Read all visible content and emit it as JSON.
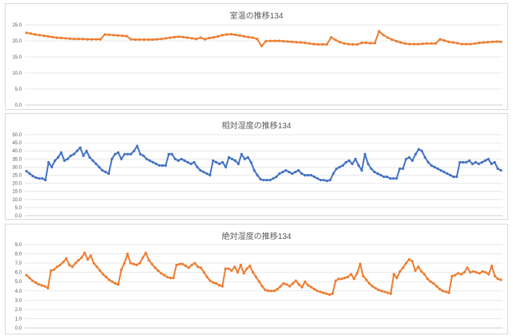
{
  "chart_data": [
    {
      "type": "line",
      "title": "室温の推移134",
      "xlabel": "",
      "ylabel": "",
      "ylim": [
        0,
        25
      ],
      "yticks": [
        "0.0",
        "5.0",
        "10.0",
        "15.0",
        "20.0",
        "25.0"
      ],
      "grid": true,
      "color": "#ED7D31",
      "marker": "circle",
      "series": [
        {
          "name": "",
          "values": [
            22.5,
            22.3,
            22.0,
            21.8,
            21.6,
            21.4,
            21.2,
            21.0,
            20.9,
            20.8,
            20.7,
            20.6,
            20.6,
            20.6,
            20.5,
            20.5,
            20.5,
            20.5,
            22.0,
            21.9,
            21.8,
            21.7,
            21.6,
            21.5,
            20.5,
            20.4,
            20.4,
            20.4,
            20.4,
            20.4,
            20.5,
            20.6,
            20.8,
            21.0,
            21.2,
            21.3,
            21.2,
            21.0,
            20.8,
            20.6,
            21.0,
            20.5,
            20.9,
            21.1,
            21.4,
            21.8,
            22.0,
            22.1,
            21.9,
            21.7,
            21.4,
            21.2,
            21.0,
            20.6,
            18.4,
            19.9,
            20.0,
            20.0,
            20.0,
            19.9,
            19.8,
            19.7,
            19.6,
            19.5,
            19.4,
            19.2,
            19.0,
            18.9,
            18.9,
            18.9,
            21.1,
            20.3,
            19.6,
            19.2,
            19.0,
            18.9,
            18.9,
            19.4,
            19.4,
            19.3,
            19.3,
            23.0,
            21.8,
            21.0,
            20.4,
            19.9,
            19.5,
            19.2,
            19.0,
            19.0,
            19.0,
            19.1,
            19.2,
            19.2,
            19.2,
            20.5,
            20.1,
            19.7,
            19.5,
            19.3,
            19.0,
            19.0,
            19.0,
            19.2,
            19.4,
            19.5,
            19.6,
            19.7,
            19.8,
            19.7
          ]
        }
      ]
    },
    {
      "type": "line",
      "title": "相対湿度の推移134",
      "xlabel": "",
      "ylabel": "",
      "ylim": [
        0,
        50
      ],
      "yticks": [
        "0.0",
        "5.0",
        "10.0",
        "15.0",
        "20.0",
        "25.0",
        "30.0",
        "35.0",
        "40.0",
        "45.0",
        "50.0"
      ],
      "grid": true,
      "color": "#4472C4",
      "marker": "circle",
      "series": [
        {
          "name": "",
          "values": [
            27.5,
            26.0,
            24.5,
            23.5,
            23.0,
            23.0,
            22.0,
            33.0,
            30.0,
            34.0,
            36.0,
            39.0,
            34.0,
            35.0,
            37.0,
            38.0,
            40.0,
            42.0,
            37.0,
            40.0,
            36.0,
            34.0,
            32.0,
            30.0,
            28.0,
            27.0,
            26.0,
            35.0,
            38.0,
            39.0,
            35.0,
            38.0,
            38.0,
            38.0,
            40.0,
            43.0,
            38.0,
            37.0,
            35.0,
            34.0,
            33.0,
            32.0,
            31.0,
            31.0,
            31.0,
            38.0,
            38.0,
            35.0,
            34.0,
            35.0,
            34.0,
            33.0,
            32.0,
            33.0,
            30.0,
            28.0,
            27.0,
            26.0,
            25.0,
            34.0,
            33.0,
            32.0,
            33.0,
            30.0,
            36.0,
            35.0,
            34.0,
            32.0,
            38.0,
            35.0,
            36.0,
            33.0,
            28.0,
            25.0,
            22.5,
            22.0,
            22.0,
            22.0,
            23.0,
            24.0,
            26.0,
            27.0,
            28.0,
            27.0,
            26.0,
            27.0,
            28.0,
            26.0,
            25.0,
            25.0,
            25.0,
            24.0,
            23.0,
            22.0,
            22.0,
            21.5,
            22.0,
            26.0,
            29.0,
            30.0,
            31.0,
            33.0,
            34.0,
            32.0,
            35.0,
            31.0,
            28.0,
            38.0,
            32.0,
            29.0,
            27.0,
            26.0,
            25.0,
            24.0,
            24.0,
            23.0,
            23.0,
            23.0,
            29.0,
            29.0,
            35.0,
            36.0,
            34.0,
            38.0,
            41.0,
            40.0,
            36.0,
            33.0,
            31.0,
            30.0,
            29.0,
            28.0,
            27.0,
            26.0,
            25.0,
            24.0,
            24.0,
            33.0,
            33.0,
            33.0,
            34.0,
            32.0,
            33.0,
            32.0,
            33.0,
            34.0,
            35.0,
            32.0,
            33.0,
            29.0,
            28.0
          ]
        }
      ]
    },
    {
      "type": "line",
      "title": "絶対湿度の推移134",
      "xlabel": "",
      "ylabel": "",
      "ylim": [
        0,
        9
      ],
      "yticks": [
        "0.0",
        "1.0",
        "2.0",
        "3.0",
        "4.0",
        "5.0",
        "6.0",
        "7.0",
        "8.0",
        "9.0"
      ],
      "grid": true,
      "color": "#ED7D31",
      "marker": "circle",
      "series": [
        {
          "name": "",
          "values": [
            5.7,
            5.4,
            5.1,
            4.9,
            4.7,
            4.6,
            4.5,
            4.3,
            6.2,
            6.3,
            6.6,
            6.8,
            7.1,
            7.5,
            6.8,
            6.6,
            7.0,
            7.3,
            7.6,
            8.1,
            7.4,
            7.8,
            7.0,
            6.6,
            6.2,
            5.8,
            5.5,
            5.2,
            5.0,
            4.8,
            4.7,
            6.3,
            7.0,
            8.0,
            7.0,
            6.9,
            6.8,
            7.0,
            7.6,
            8.1,
            7.3,
            6.9,
            6.5,
            6.2,
            5.9,
            5.7,
            5.5,
            5.4,
            5.4,
            6.8,
            6.9,
            6.9,
            6.7,
            6.5,
            6.8,
            7.0,
            6.6,
            6.5,
            6.0,
            5.5,
            5.1,
            4.9,
            4.8,
            4.6,
            4.5,
            6.4,
            6.4,
            6.2,
            6.6,
            6.0,
            6.8,
            5.9,
            6.4,
            6.7,
            6.0,
            5.5,
            5.0,
            4.5,
            4.1,
            4.0,
            4.0,
            4.0,
            4.2,
            4.5,
            4.8,
            4.7,
            4.5,
            4.8,
            5.1,
            4.7,
            4.4,
            5.0,
            4.6,
            4.4,
            4.2,
            4.0,
            3.9,
            3.8,
            3.7,
            3.6,
            3.7,
            5.1,
            5.3,
            5.3,
            5.4,
            5.5,
            5.8,
            5.3,
            5.9,
            6.9,
            5.6,
            5.2,
            4.8,
            4.5,
            4.3,
            4.1,
            4.0,
            3.9,
            3.8,
            3.7,
            5.8,
            5.4,
            6.1,
            6.5,
            7.0,
            7.4,
            7.2,
            6.2,
            6.6,
            6.1,
            5.8,
            5.3,
            5.0,
            4.8,
            4.5,
            4.2,
            4.0,
            3.9,
            3.8,
            5.6,
            5.7,
            5.9,
            5.8,
            6.0,
            6.5,
            6.0,
            6.1,
            6.0,
            5.9,
            6.1,
            6.0,
            5.8,
            6.7,
            5.6,
            5.3,
            5.2
          ]
        }
      ]
    }
  ]
}
